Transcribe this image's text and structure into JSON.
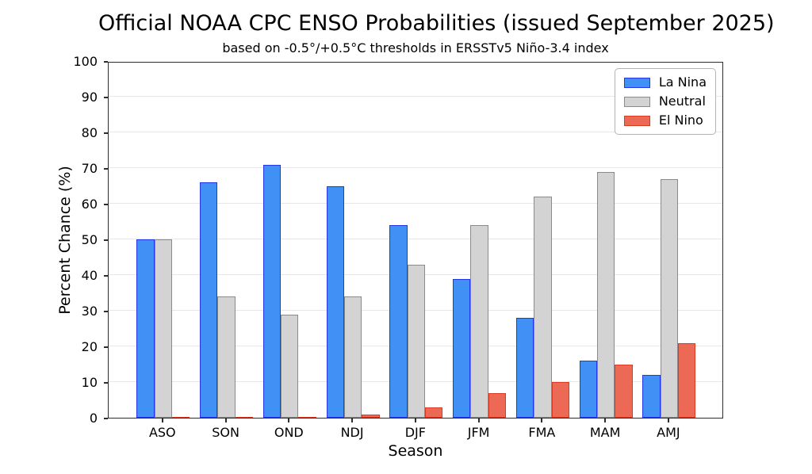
{
  "chart_data": {
    "type": "bar",
    "title": "Official NOAA CPC ENSO Probabilities (issued September 2025)",
    "subtitle": "based on -0.5°/+0.5°C thresholds in ERSSTv5 Niño-3.4 index",
    "xlabel": "Season",
    "ylabel": "Percent Chance (%)",
    "categories": [
      "ASO",
      "SON",
      "OND",
      "NDJ",
      "DJF",
      "JFM",
      "FMA",
      "MAM",
      "AMJ"
    ],
    "series": [
      {
        "name": "La Nina",
        "fill": "#4190f5",
        "edge": "#2236ec",
        "values": [
          50,
          66,
          71,
          65,
          54,
          39,
          28,
          16,
          12
        ]
      },
      {
        "name": "Neutral",
        "fill": "#d3d3d3",
        "edge": "#8a8a8a",
        "values": [
          50,
          34,
          29,
          34,
          43,
          54,
          62,
          69,
          67
        ]
      },
      {
        "name": "El Nino",
        "fill": "#ec6a55",
        "edge": "#d93a22",
        "values": [
          0,
          0,
          0,
          1,
          3,
          7,
          10,
          15,
          21
        ]
      }
    ],
    "ylim": [
      0,
      100
    ],
    "yticks": [
      0,
      10,
      20,
      30,
      40,
      50,
      60,
      70,
      80,
      90,
      100
    ],
    "grid": true,
    "legend_position": "upper right"
  }
}
